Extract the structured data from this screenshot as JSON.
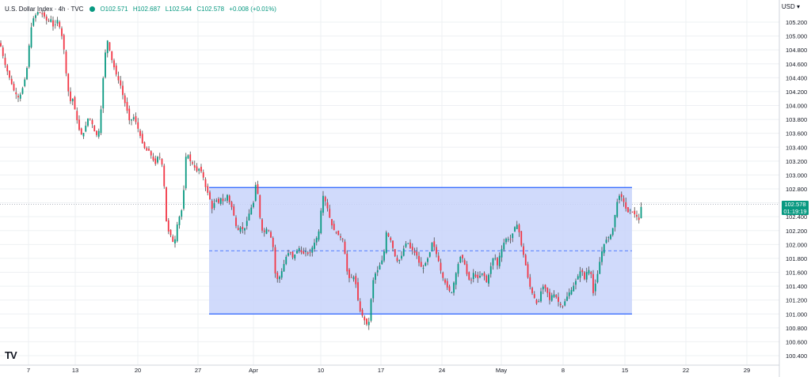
{
  "legend": {
    "symbol": "U.S. Dollar Index · 4h · TVC",
    "open": "O102.571",
    "high": "H102.687",
    "low": "L102.544",
    "close": "C102.578",
    "change": "+0.008 (+0.01%)"
  },
  "currency": "USD ▾",
  "last_price": {
    "value": "102.578",
    "countdown": "01:19:19"
  },
  "logo": "TV",
  "colors": {
    "up": "#089981",
    "down": "#f23645",
    "wick": "#4a4a4a",
    "range_fill": "#c8d4fa",
    "range_line": "#2962ff",
    "grid": "#eef0f3"
  },
  "chart_data": {
    "type": "candlestick",
    "title": "U.S. Dollar Index · 4h · TVC",
    "xlabel": "",
    "ylabel": "USD",
    "ylim": [
      100.3,
      105.35
    ],
    "y_ticks": [
      "105.200",
      "105.000",
      "104.800",
      "104.600",
      "104.400",
      "104.200",
      "104.000",
      "103.800",
      "103.600",
      "103.400",
      "103.200",
      "103.000",
      "102.800",
      "102.600",
      "102.400",
      "102.200",
      "102.000",
      "101.800",
      "101.600",
      "101.400",
      "101.200",
      "101.000",
      "100.800",
      "100.600",
      "100.400"
    ],
    "x_ticks": [
      "7",
      "13",
      "20",
      "27",
      "Apr",
      "10",
      "17",
      "24",
      "May",
      "8",
      "15",
      "22",
      "29"
    ],
    "grid": true,
    "range_box": {
      "top": 102.82,
      "bottom": 101.0,
      "mid": 101.91,
      "x_start": "Mar 28",
      "x_end": "May 16"
    },
    "last_close": 102.578,
    "price_path": [
      [
        0,
        104.9
      ],
      [
        6,
        104.6
      ],
      [
        12,
        104.4
      ],
      [
        18,
        104.2
      ],
      [
        24,
        104.1
      ],
      [
        30,
        104.3
      ],
      [
        35,
        104.6
      ],
      [
        38,
        105.05
      ],
      [
        42,
        105.25
      ],
      [
        48,
        105.35
      ],
      [
        55,
        105.3
      ],
      [
        60,
        105.2
      ],
      [
        64,
        105.25
      ],
      [
        68,
        105.1
      ],
      [
        72,
        105.25
      ],
      [
        76,
        105.1
      ],
      [
        80,
        104.9
      ],
      [
        84,
        104.4
      ],
      [
        88,
        104.05
      ],
      [
        92,
        104.1
      ],
      [
        96,
        103.85
      ],
      [
        100,
        103.65
      ],
      [
        104,
        103.55
      ],
      [
        108,
        103.7
      ],
      [
        112,
        103.85
      ],
      [
        116,
        103.75
      ],
      [
        120,
        103.6
      ],
      [
        124,
        103.55
      ],
      [
        128,
        104.0
      ],
      [
        132,
        104.7
      ],
      [
        136,
        104.95
      ],
      [
        140,
        104.7
      ],
      [
        144,
        104.55
      ],
      [
        148,
        104.4
      ],
      [
        152,
        104.3
      ],
      [
        156,
        104.1
      ],
      [
        160,
        103.95
      ],
      [
        164,
        103.75
      ],
      [
        168,
        103.85
      ],
      [
        172,
        103.75
      ],
      [
        176,
        103.6
      ],
      [
        180,
        103.45
      ],
      [
        184,
        103.35
      ],
      [
        188,
        103.35
      ],
      [
        192,
        103.25
      ],
      [
        196,
        103.15
      ],
      [
        200,
        103.3
      ],
      [
        204,
        103.2
      ],
      [
        207,
        102.9
      ],
      [
        209,
        102.4
      ],
      [
        212,
        102.2
      ],
      [
        215,
        102.15
      ],
      [
        218,
        102.05
      ],
      [
        220,
        101.95
      ],
      [
        222,
        102.2
      ],
      [
        225,
        102.35
      ],
      [
        228,
        102.45
      ],
      [
        231,
        102.55
      ],
      [
        234,
        103.25
      ],
      [
        237,
        103.3
      ],
      [
        240,
        103.2
      ],
      [
        244,
        103.15
      ],
      [
        248,
        103.05
      ],
      [
        252,
        103.1
      ],
      [
        256,
        103.0
      ],
      [
        260,
        102.8
      ],
      [
        264,
        102.7
      ],
      [
        268,
        102.5
      ],
      [
        272,
        102.65
      ],
      [
        276,
        102.6
      ],
      [
        280,
        102.7
      ],
      [
        283,
        102.55
      ],
      [
        286,
        102.75
      ],
      [
        290,
        102.6
      ],
      [
        294,
        102.5
      ],
      [
        297,
        102.3
      ],
      [
        300,
        102.2
      ],
      [
        304,
        102.25
      ],
      [
        308,
        102.2
      ],
      [
        312,
        102.35
      ],
      [
        316,
        102.5
      ],
      [
        320,
        102.6
      ],
      [
        322,
        102.8
      ],
      [
        324,
        102.95
      ],
      [
        326,
        102.65
      ],
      [
        329,
        102.3
      ],
      [
        332,
        102.15
      ],
      [
        335,
        102.2
      ],
      [
        338,
        102.25
      ],
      [
        342,
        102.1
      ],
      [
        345,
        101.95
      ],
      [
        347,
        101.6
      ],
      [
        350,
        101.5
      ],
      [
        354,
        101.55
      ],
      [
        358,
        101.7
      ],
      [
        362,
        101.85
      ],
      [
        366,
        101.9
      ],
      [
        370,
        101.8
      ],
      [
        374,
        101.9
      ],
      [
        378,
        101.95
      ],
      [
        382,
        101.85
      ],
      [
        386,
        101.9
      ],
      [
        390,
        101.85
      ],
      [
        394,
        101.95
      ],
      [
        398,
        102.05
      ],
      [
        402,
        102.15
      ],
      [
        404,
        102.3
      ],
      [
        406,
        102.6
      ],
      [
        408,
        102.7
      ],
      [
        410,
        102.65
      ],
      [
        414,
        102.5
      ],
      [
        418,
        102.3
      ],
      [
        422,
        102.2
      ],
      [
        426,
        102.15
      ],
      [
        430,
        102.1
      ],
      [
        434,
        102.05
      ],
      [
        436,
        101.8
      ],
      [
        439,
        101.55
      ],
      [
        442,
        101.5
      ],
      [
        446,
        101.55
      ],
      [
        450,
        101.4
      ],
      [
        453,
        101.1
      ],
      [
        456,
        101.0
      ],
      [
        459,
        100.95
      ],
      [
        462,
        100.85
      ],
      [
        465,
        100.85
      ],
      [
        467,
        100.95
      ],
      [
        469,
        101.3
      ],
      [
        472,
        101.55
      ],
      [
        475,
        101.6
      ],
      [
        478,
        101.65
      ],
      [
        481,
        101.75
      ],
      [
        484,
        101.8
      ],
      [
        486,
        102.0
      ],
      [
        488,
        102.2
      ],
      [
        491,
        102.1
      ],
      [
        494,
        102.05
      ],
      [
        498,
        101.85
      ],
      [
        502,
        101.75
      ],
      [
        506,
        101.8
      ],
      [
        510,
        101.95
      ],
      [
        514,
        102.05
      ],
      [
        518,
        101.95
      ],
      [
        522,
        101.9
      ],
      [
        526,
        101.85
      ],
      [
        530,
        101.7
      ],
      [
        534,
        101.65
      ],
      [
        538,
        101.75
      ],
      [
        542,
        101.85
      ],
      [
        546,
        102.05
      ],
      [
        550,
        101.9
      ],
      [
        554,
        101.75
      ],
      [
        558,
        101.55
      ],
      [
        562,
        101.45
      ],
      [
        566,
        101.35
      ],
      [
        570,
        101.3
      ],
      [
        574,
        101.5
      ],
      [
        578,
        101.7
      ],
      [
        582,
        101.85
      ],
      [
        586,
        101.75
      ],
      [
        590,
        101.55
      ],
      [
        594,
        101.45
      ],
      [
        598,
        101.6
      ],
      [
        602,
        101.5
      ],
      [
        606,
        101.55
      ],
      [
        610,
        101.6
      ],
      [
        614,
        101.45
      ],
      [
        618,
        101.6
      ],
      [
        621,
        101.75
      ],
      [
        624,
        101.85
      ],
      [
        628,
        101.7
      ],
      [
        631,
        101.85
      ],
      [
        634,
        101.95
      ],
      [
        637,
        102.05
      ],
      [
        640,
        102.1
      ],
      [
        644,
        102.05
      ],
      [
        647,
        102.15
      ],
      [
        650,
        102.25
      ],
      [
        654,
        102.3
      ],
      [
        657,
        102.05
      ],
      [
        660,
        101.9
      ],
      [
        663,
        101.75
      ],
      [
        666,
        101.55
      ],
      [
        669,
        101.4
      ],
      [
        672,
        101.3
      ],
      [
        676,
        101.2
      ],
      [
        679,
        101.1
      ],
      [
        682,
        101.3
      ],
      [
        686,
        101.4
      ],
      [
        690,
        101.35
      ],
      [
        694,
        101.2
      ],
      [
        698,
        101.3
      ],
      [
        702,
        101.25
      ],
      [
        706,
        101.15
      ],
      [
        710,
        101.1
      ],
      [
        714,
        101.2
      ],
      [
        718,
        101.3
      ],
      [
        722,
        101.35
      ],
      [
        726,
        101.45
      ],
      [
        730,
        101.55
      ],
      [
        734,
        101.65
      ],
      [
        738,
        101.5
      ],
      [
        742,
        101.65
      ],
      [
        746,
        101.6
      ],
      [
        749,
        101.3
      ],
      [
        752,
        101.45
      ],
      [
        755,
        101.6
      ],
      [
        758,
        101.8
      ],
      [
        761,
        101.95
      ],
      [
        764,
        102.05
      ],
      [
        768,
        102.1
      ],
      [
        772,
        102.15
      ],
      [
        775,
        102.3
      ],
      [
        778,
        102.55
      ],
      [
        781,
        102.7
      ],
      [
        784,
        102.7
      ],
      [
        788,
        102.6
      ],
      [
        792,
        102.45
      ],
      [
        796,
        102.5
      ],
      [
        800,
        102.45
      ],
      [
        804,
        102.4
      ],
      [
        807,
        102.35
      ],
      [
        810,
        102.578
      ]
    ]
  }
}
